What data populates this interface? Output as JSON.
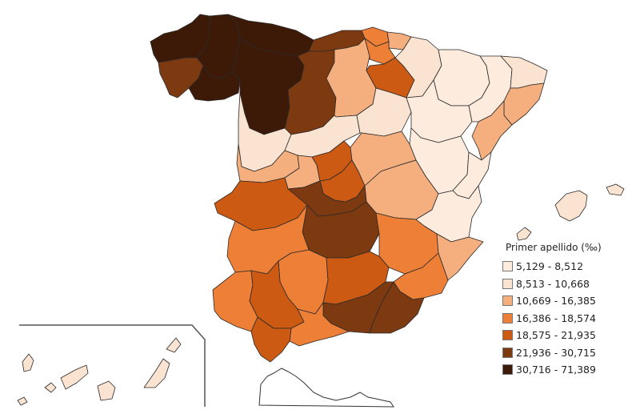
{
  "legend": {
    "title": "Primer apellido (‰)",
    "classes": [
      {
        "label": "5,129 - 8,512",
        "color": "#fdebdd"
      },
      {
        "label": "8,513 - 10,668",
        "color": "#fbe3d1"
      },
      {
        "label": "10,669 - 16,385",
        "color": "#f5ae7e"
      },
      {
        "label": "16,386 - 18,574",
        "color": "#ed7f37"
      },
      {
        "label": "18,575 - 21,935",
        "color": "#cc5a13"
      },
      {
        "label": "21,936 - 30,715",
        "color": "#7d3a10"
      },
      {
        "label": "30,716 - 71,389",
        "color": "#3c1a07"
      }
    ]
  },
  "regions": [
    {
      "name": "a-coruna",
      "class": 6
    },
    {
      "name": "lugo",
      "class": 6
    },
    {
      "name": "pontevedra",
      "class": 5
    },
    {
      "name": "ourense",
      "class": 6
    },
    {
      "name": "asturias",
      "class": 6
    },
    {
      "name": "leon",
      "class": 6
    },
    {
      "name": "cantabria",
      "class": 5
    },
    {
      "name": "palencia",
      "class": 5
    },
    {
      "name": "burgos",
      "class": 2
    },
    {
      "name": "vizcaya",
      "class": 3
    },
    {
      "name": "guipuzcoa",
      "class": 2
    },
    {
      "name": "alava",
      "class": 3
    },
    {
      "name": "la-rioja",
      "class": 4
    },
    {
      "name": "navarra",
      "class": 1
    },
    {
      "name": "zamora",
      "class": 1
    },
    {
      "name": "valladolid",
      "class": 1
    },
    {
      "name": "soria",
      "class": 1
    },
    {
      "name": "huesca",
      "class": 0
    },
    {
      "name": "zaragoza",
      "class": 0
    },
    {
      "name": "teruel",
      "class": 0
    },
    {
      "name": "lleida",
      "class": 0
    },
    {
      "name": "girona",
      "class": 1
    },
    {
      "name": "barcelona",
      "class": 2
    },
    {
      "name": "tarragona",
      "class": 2
    },
    {
      "name": "salamanca",
      "class": 2
    },
    {
      "name": "avila",
      "class": 2
    },
    {
      "name": "segovia",
      "class": 4
    },
    {
      "name": "madrid",
      "class": 4
    },
    {
      "name": "guadalajara",
      "class": 2
    },
    {
      "name": "cuenca",
      "class": 2
    },
    {
      "name": "caceres",
      "class": 4
    },
    {
      "name": "toledo",
      "class": 5
    },
    {
      "name": "ciudad-real",
      "class": 5
    },
    {
      "name": "castellon",
      "class": 0
    },
    {
      "name": "valencia",
      "class": 0
    },
    {
      "name": "albacete",
      "class": 3
    },
    {
      "name": "alicante",
      "class": 2
    },
    {
      "name": "badajoz",
      "class": 3
    },
    {
      "name": "murcia",
      "class": 3
    },
    {
      "name": "huelva",
      "class": 3
    },
    {
      "name": "cordoba",
      "class": 3
    },
    {
      "name": "jaen",
      "class": 4
    },
    {
      "name": "sevilla",
      "class": 4
    },
    {
      "name": "granada",
      "class": 5
    },
    {
      "name": "almeria",
      "class": 5
    },
    {
      "name": "malaga",
      "class": 3
    },
    {
      "name": "cadiz",
      "class": 4
    },
    {
      "name": "mallorca",
      "class": 1
    },
    {
      "name": "menorca",
      "class": 1
    },
    {
      "name": "ibiza",
      "class": 1
    },
    {
      "name": "canarias",
      "class": 1
    }
  ]
}
